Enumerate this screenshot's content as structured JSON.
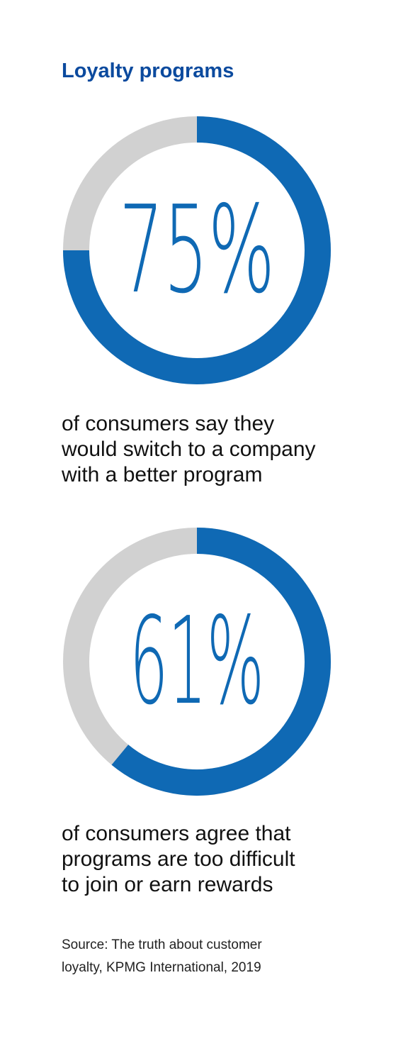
{
  "title": "Loyalty programs",
  "colors": {
    "accent": "#0f69b4",
    "track": "#d1d1d1",
    "title": "#0b4a9e"
  },
  "chart_data": [
    {
      "type": "pie",
      "variant": "donut",
      "value_percent": 75,
      "label": "75%",
      "caption_lines": [
        "of consumers say they",
        "would switch to a company",
        "with a better program"
      ]
    },
    {
      "type": "pie",
      "variant": "donut",
      "value_percent": 61,
      "label": "61%",
      "caption_lines": [
        "of consumers agree that",
        "programs are too difficult",
        "to join or earn rewards"
      ]
    }
  ],
  "source_lines": [
    "Source: The truth about customer",
    "loyalty, KPMG International, 2019"
  ]
}
